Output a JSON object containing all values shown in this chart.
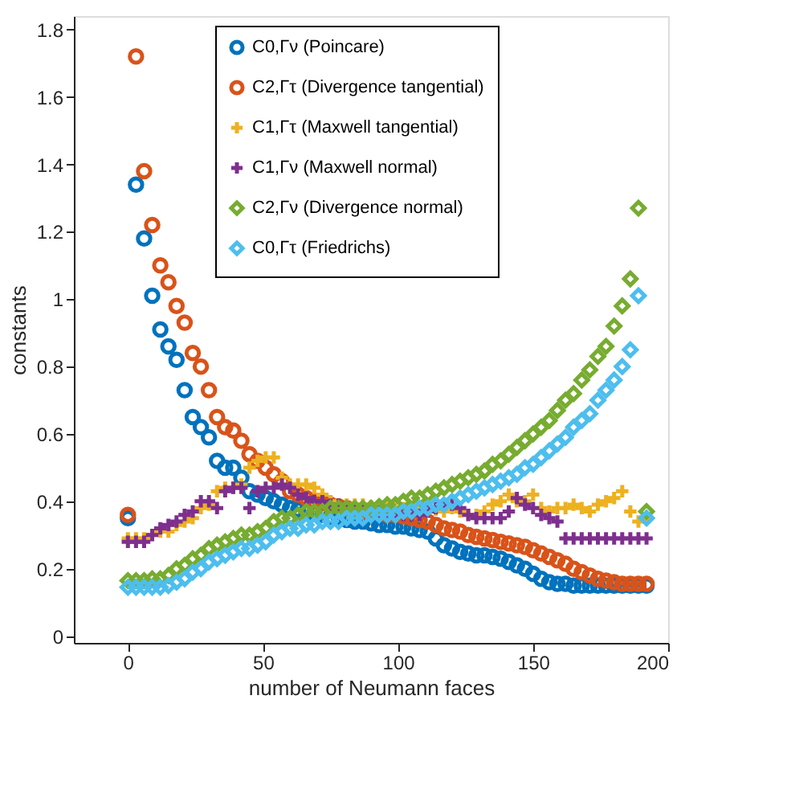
{
  "chart_data": {
    "type": "scatter",
    "xlabel": "number of Neumann faces",
    "ylabel": "constants",
    "x": [
      0,
      3,
      6,
      9,
      12,
      15,
      18,
      21,
      24,
      27,
      30,
      33,
      36,
      39,
      42,
      45,
      48,
      51,
      54,
      57,
      60,
      63,
      66,
      69,
      72,
      75,
      78,
      81,
      84,
      87,
      90,
      93,
      96,
      99,
      102,
      105,
      108,
      111,
      114,
      117,
      120,
      123,
      126,
      129,
      132,
      135,
      138,
      141,
      144,
      147,
      150,
      153,
      156,
      159,
      162,
      165,
      168,
      171,
      174,
      177,
      180,
      183,
      186,
      189,
      192
    ],
    "xlim": [
      -20,
      200
    ],
    "xticks": [
      0,
      50,
      100,
      150,
      200
    ],
    "ylim": [
      -0.02,
      1.84
    ],
    "yticks": [
      0,
      0.2,
      0.4,
      0.6,
      0.8,
      1,
      1.2,
      1.4,
      1.6,
      1.8
    ],
    "grid": false,
    "legend": "top right",
    "series": [
      {
        "name": "C0,Γν (Poincare)",
        "color": "#0072bd",
        "marker": "circle",
        "values": [
          0.35,
          1.34,
          1.18,
          1.01,
          0.91,
          0.86,
          0.82,
          0.73,
          0.65,
          0.62,
          0.59,
          0.52,
          0.5,
          0.5,
          0.47,
          0.43,
          0.42,
          0.41,
          0.4,
          0.39,
          0.38,
          0.375,
          0.37,
          0.365,
          0.36,
          0.355,
          0.35,
          0.345,
          0.34,
          0.34,
          0.335,
          0.33,
          0.33,
          0.325,
          0.325,
          0.32,
          0.315,
          0.31,
          0.29,
          0.27,
          0.26,
          0.25,
          0.245,
          0.24,
          0.24,
          0.235,
          0.23,
          0.22,
          0.21,
          0.2,
          0.185,
          0.17,
          0.16,
          0.155,
          0.155,
          0.15,
          0.15,
          0.15,
          0.15,
          0.15,
          0.15,
          0.15,
          0.15,
          0.15,
          0.15
        ]
      },
      {
        "name": "C2,Γτ (Divergence tangential)",
        "color": "#d95319",
        "marker": "circle",
        "values": [
          0.36,
          1.72,
          1.38,
          1.22,
          1.1,
          1.05,
          0.98,
          0.93,
          0.84,
          0.8,
          0.73,
          0.65,
          0.62,
          0.61,
          0.58,
          0.54,
          0.52,
          0.5,
          0.48,
          0.46,
          0.43,
          0.42,
          0.41,
          0.4,
          0.395,
          0.39,
          0.385,
          0.38,
          null,
          0.37,
          null,
          null,
          0.36,
          0.36,
          0.355,
          0.35,
          0.345,
          0.34,
          0.33,
          0.32,
          0.315,
          0.31,
          0.3,
          0.295,
          0.29,
          0.285,
          0.28,
          0.275,
          0.27,
          0.265,
          0.255,
          0.245,
          0.235,
          0.225,
          0.215,
          0.2,
          0.19,
          0.18,
          0.17,
          0.165,
          0.16,
          0.155,
          0.155,
          0.155,
          0.155
        ]
      },
      {
        "name": "C1,Γτ (Maxwell tangential)",
        "color": "#edb120",
        "marker": "cross",
        "values": [
          0.29,
          0.29,
          0.29,
          0.3,
          0.31,
          0.31,
          0.33,
          0.34,
          0.35,
          0.38,
          0.39,
          0.43,
          0.44,
          0.44,
          0.45,
          0.5,
          0.52,
          0.53,
          0.53,
          0.47,
          0.45,
          0.45,
          0.45,
          0.44,
          0.42,
          0.4,
          0.39,
          0.39,
          0.39,
          0.39,
          0.385,
          0.385,
          0.38,
          0.38,
          0.38,
          null,
          0.38,
          0.38,
          0.375,
          0.37,
          0.38,
          0.37,
          0.36,
          0.36,
          0.37,
          0.39,
          0.4,
          0.42,
          0.4,
          0.4,
          0.42,
          0.38,
          0.37,
          0.38,
          0.38,
          0.39,
          0.38,
          0.37,
          0.39,
          0.4,
          0.41,
          0.43,
          0.37,
          0.34,
          0.35
        ]
      },
      {
        "name": "C1,Γν (Maxwell normal)",
        "color": "#7e2f8e",
        "marker": "cross",
        "values": [
          0.28,
          0.28,
          0.28,
          0.3,
          0.32,
          0.33,
          0.34,
          0.36,
          0.37,
          0.4,
          0.4,
          0.38,
          0.43,
          0.44,
          0.44,
          0.38,
          0.43,
          0.44,
          0.44,
          0.45,
          0.44,
          0.42,
          0.41,
          0.4,
          0.4,
          0.39,
          0.39,
          0.38,
          0.38,
          0.38,
          0.37,
          0.37,
          0.37,
          0.36,
          0.36,
          0.36,
          0.36,
          0.37,
          0.38,
          0.39,
          0.39,
          0.38,
          0.36,
          0.35,
          0.35,
          0.35,
          0.35,
          0.37,
          0.41,
          0.39,
          0.38,
          0.36,
          0.35,
          0.34,
          0.29,
          0.29,
          0.29,
          0.29,
          0.29,
          0.29,
          0.29,
          0.29,
          0.29,
          0.29,
          0.29
        ]
      },
      {
        "name": "C2,Γν (Divergence normal)",
        "color": "#77ac30",
        "marker": "diamond",
        "values": [
          0.165,
          0.165,
          0.165,
          0.17,
          0.17,
          0.18,
          0.2,
          0.21,
          0.23,
          0.24,
          0.26,
          0.27,
          0.28,
          0.29,
          0.3,
          0.3,
          0.31,
          0.32,
          0.34,
          0.35,
          0.35,
          0.36,
          0.37,
          0.37,
          0.37,
          0.38,
          0.38,
          0.38,
          0.38,
          0.38,
          0.38,
          0.385,
          0.39,
          0.39,
          0.4,
          0.41,
          0.41,
          0.42,
          0.43,
          0.44,
          0.45,
          0.46,
          0.47,
          0.48,
          0.49,
          0.51,
          0.52,
          0.54,
          0.56,
          0.58,
          0.6,
          0.62,
          0.64,
          0.67,
          0.7,
          0.72,
          0.76,
          0.79,
          0.83,
          0.86,
          0.92,
          0.98,
          1.06,
          1.27,
          0.37
        ]
      },
      {
        "name": "C0,Γτ (Friedrichs)",
        "color": "#4dbeee",
        "marker": "diamond",
        "values": [
          0.145,
          0.145,
          0.145,
          0.145,
          0.145,
          0.15,
          0.16,
          0.17,
          0.19,
          0.2,
          0.22,
          0.23,
          0.24,
          0.25,
          0.26,
          0.26,
          0.27,
          0.28,
          0.3,
          0.31,
          0.32,
          0.32,
          0.33,
          0.33,
          0.34,
          0.34,
          0.34,
          0.35,
          0.35,
          0.35,
          0.36,
          0.36,
          0.36,
          0.36,
          0.37,
          0.37,
          0.38,
          0.38,
          0.39,
          0.39,
          0.4,
          0.41,
          0.42,
          0.43,
          0.44,
          0.45,
          0.46,
          0.47,
          0.48,
          0.5,
          0.51,
          0.53,
          0.55,
          0.57,
          0.59,
          0.62,
          0.64,
          0.66,
          0.7,
          0.73,
          0.76,
          0.8,
          0.85,
          1.01,
          0.35
        ]
      }
    ]
  }
}
